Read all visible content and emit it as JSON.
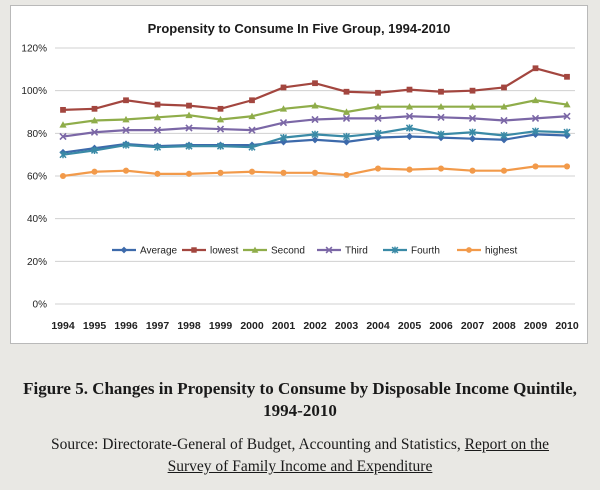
{
  "caption": {
    "line1": "Figure 5. Changes in Propensity to Consume by Disposable Income Quintile,",
    "line2": "1994-2010"
  },
  "source": {
    "prefix": "Source: Directorate-General of Budget, Accounting and Statistics, ",
    "report_line1": "Report on the",
    "report_line2": "Survey of Family Income and Expenditure"
  },
  "chart_data": {
    "type": "line",
    "title": "Propensity  to Consume In Five Group, 1994-2010",
    "xlabel": "",
    "ylabel": "",
    "categories": [
      "1994",
      "1995",
      "1996",
      "1997",
      "1998",
      "1999",
      "2000",
      "2001",
      "2002",
      "2003",
      "2004",
      "2005",
      "2006",
      "2007",
      "2008",
      "2009",
      "2010"
    ],
    "ylim": [
      0,
      120
    ],
    "yticks": [
      0,
      20,
      40,
      60,
      80,
      100,
      120
    ],
    "ytick_labels": [
      "0%",
      "20%",
      "40%",
      "60%",
      "80%",
      "100%",
      "120%"
    ],
    "grid": "horizontal",
    "legend_position": "inside-bottom",
    "series": [
      {
        "name": "Average",
        "color": "#3d6aab",
        "marker": "diamond",
        "values": [
          71,
          73,
          75,
          74,
          74.5,
          74.5,
          74.5,
          76,
          77,
          76,
          78,
          78.5,
          78,
          77.5,
          77,
          79.5,
          79
        ]
      },
      {
        "name": "lowest",
        "color": "#a3463f",
        "marker": "square",
        "values": [
          91,
          91.5,
          95.5,
          93.5,
          93,
          91.5,
          95.5,
          101.5,
          103.5,
          99.5,
          99,
          100.5,
          99.5,
          100,
          101.5,
          110.5,
          106.5
        ]
      },
      {
        "name": "Second",
        "color": "#8fad4a",
        "marker": "triangle",
        "values": [
          84,
          86,
          86.5,
          87.5,
          88.5,
          86.5,
          88,
          91.5,
          93,
          90,
          92.5,
          92.5,
          92.5,
          92.5,
          92.5,
          95.5,
          93.5
        ]
      },
      {
        "name": "Third",
        "color": "#7b67a6",
        "marker": "x",
        "values": [
          78.5,
          80.5,
          81.5,
          81.5,
          82.5,
          82,
          81.5,
          85,
          86.5,
          87,
          87,
          88,
          87.5,
          87,
          86,
          87,
          88
        ]
      },
      {
        "name": "Fourth",
        "color": "#3a8aa6",
        "marker": "star",
        "values": [
          70,
          72,
          74.5,
          73.5,
          74,
          74,
          73.5,
          78,
          79.5,
          78.5,
          80,
          82.5,
          79.5,
          80.5,
          79,
          81,
          80.5
        ]
      },
      {
        "name": "highest",
        "color": "#f29a4a",
        "marker": "circle",
        "values": [
          60,
          62,
          62.5,
          61,
          61,
          61.5,
          62,
          61.5,
          61.5,
          60.5,
          63.5,
          63,
          63.5,
          62.5,
          62.5,
          64.5,
          64.5
        ]
      }
    ]
  }
}
